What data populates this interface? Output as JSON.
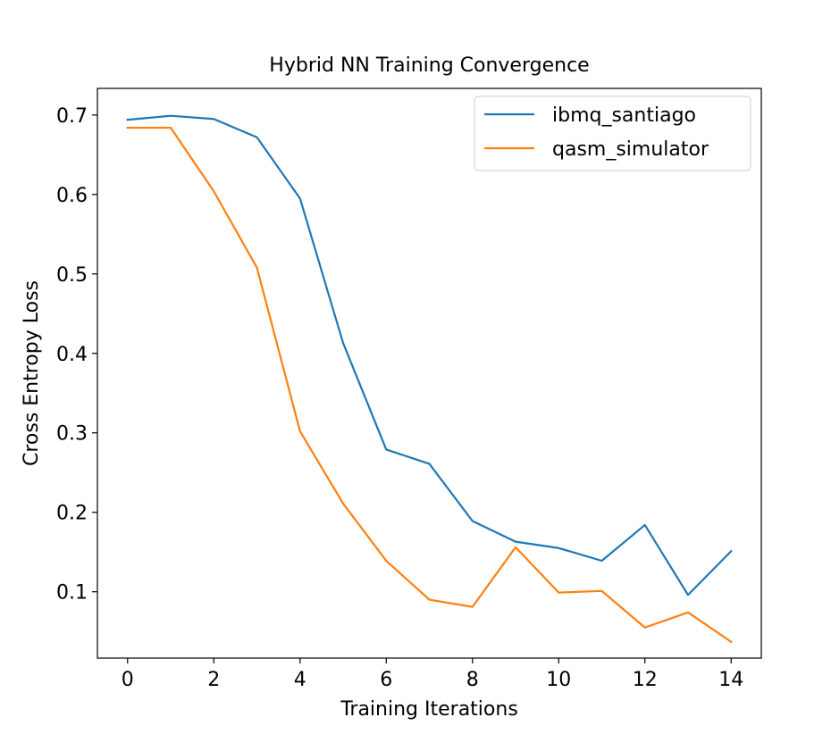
{
  "chart_data": {
    "type": "line",
    "title": "Hybrid NN Training Convergence",
    "xlabel": "Training Iterations",
    "ylabel": "Cross Entropy Loss",
    "xlim": [
      -0.7,
      14.7
    ],
    "ylim": [
      0.0165,
      0.7335
    ],
    "x_ticks": [
      0,
      2,
      4,
      6,
      8,
      10,
      12,
      14
    ],
    "y_ticks": [
      0.1,
      0.2,
      0.3,
      0.4,
      0.5,
      0.6,
      0.7
    ],
    "x_tick_labels": [
      "0",
      "2",
      "4",
      "6",
      "8",
      "10",
      "12",
      "14"
    ],
    "y_tick_labels": [
      "0.1",
      "0.2",
      "0.3",
      "0.4",
      "0.5",
      "0.6",
      "0.7"
    ],
    "grid": false,
    "legend_position": "upper right",
    "x": [
      0,
      1,
      2,
      3,
      4,
      5,
      6,
      7,
      8,
      9,
      10,
      11,
      12,
      13,
      14
    ],
    "series": [
      {
        "name": "ibmq_santiago",
        "color": "#1f77b4",
        "values": [
          0.694,
          0.699,
          0.695,
          0.672,
          0.595,
          0.413,
          0.279,
          0.261,
          0.189,
          0.163,
          0.155,
          0.139,
          0.184,
          0.096,
          0.151
        ]
      },
      {
        "name": "qasm_simulator",
        "color": "#ff7f0e",
        "values": [
          0.684,
          0.684,
          0.604,
          0.508,
          0.302,
          0.211,
          0.139,
          0.09,
          0.081,
          0.156,
          0.099,
          0.101,
          0.055,
          0.074,
          0.037
        ]
      }
    ]
  }
}
